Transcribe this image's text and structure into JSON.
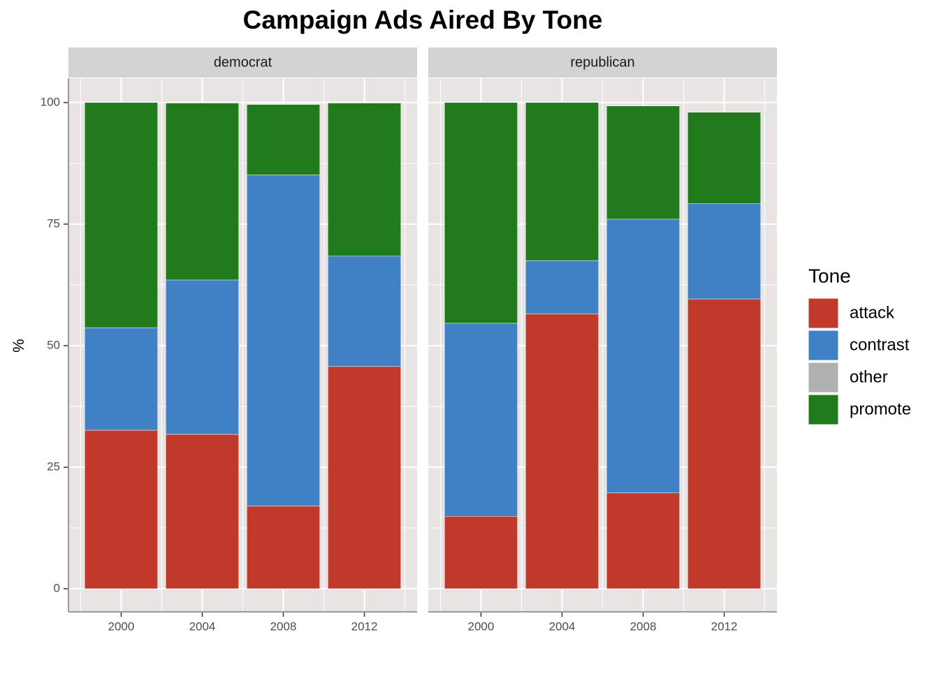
{
  "chart_data": {
    "type": "bar",
    "stacked": true,
    "title": "Campaign Ads Aired By Tone",
    "y_label": "%",
    "legend_title": "Tone",
    "panels": [
      "democrat",
      "republican"
    ],
    "categories": [
      "2000",
      "2004",
      "2008",
      "2012"
    ],
    "ylim": [
      -4.75,
      105.0
    ],
    "yticks": [
      0,
      25,
      50,
      75,
      100
    ],
    "grid": true,
    "series": [
      {
        "name": "attack",
        "color": "#c0392b",
        "values": [
          [
            32.6,
            31.75,
            17.0,
            45.7
          ],
          [
            14.9,
            56.5,
            19.7,
            59.6
          ]
        ]
      },
      {
        "name": "contrast",
        "color": "#4080c4",
        "values": [
          [
            21.1,
            31.75,
            68.1,
            22.7
          ],
          [
            39.7,
            11.0,
            56.3,
            19.6
          ]
        ]
      },
      {
        "name": "other",
        "color": "#b0b0b0",
        "values": [
          [
            0,
            0,
            0,
            0
          ],
          [
            0,
            0,
            0,
            0
          ]
        ]
      },
      {
        "name": "promote",
        "color": "#217a1c",
        "values": [
          [
            46.3,
            36.4,
            14.5,
            31.5
          ],
          [
            45.4,
            32.5,
            23.3,
            18.8
          ]
        ]
      }
    ]
  }
}
